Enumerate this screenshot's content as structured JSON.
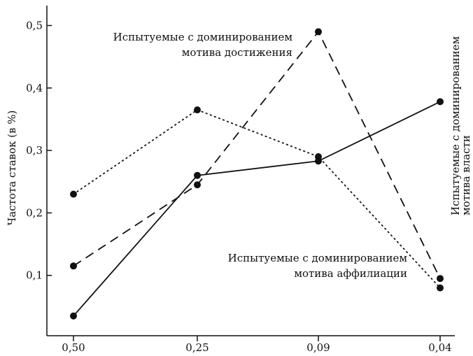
{
  "chart_data": {
    "type": "line",
    "categories": [
      "0,50",
      "0,25",
      "0,09",
      "0,04"
    ],
    "ylabel": "Частота ставок (в %)",
    "y_ticks": [
      "0,1",
      "0,2",
      "0,3",
      "0,4",
      "0,5"
    ],
    "ylim": [
      0,
      0.55
    ],
    "grid": false,
    "series": [
      {
        "id": "achievement",
        "values": [
          0.115,
          0.245,
          0.49,
          0.095
        ],
        "style": "dashed"
      },
      {
        "id": "affiliation",
        "values": [
          0.23,
          0.365,
          0.29,
          0.08
        ],
        "style": "dotted"
      },
      {
        "id": "power",
        "values": [
          0.035,
          0.26,
          0.283,
          0.378
        ],
        "style": "solid"
      }
    ],
    "annotations": [
      {
        "series": "achievement",
        "lines": [
          "Испытуемые с доминированием",
          "мотива достижения"
        ]
      },
      {
        "series": "affiliation",
        "lines": [
          "Испытуемые с доминированием",
          "мотива аффилиации"
        ]
      },
      {
        "series": "power",
        "lines": [
          "Испытуемые с доминированием",
          "мотива власти"
        ]
      }
    ]
  }
}
